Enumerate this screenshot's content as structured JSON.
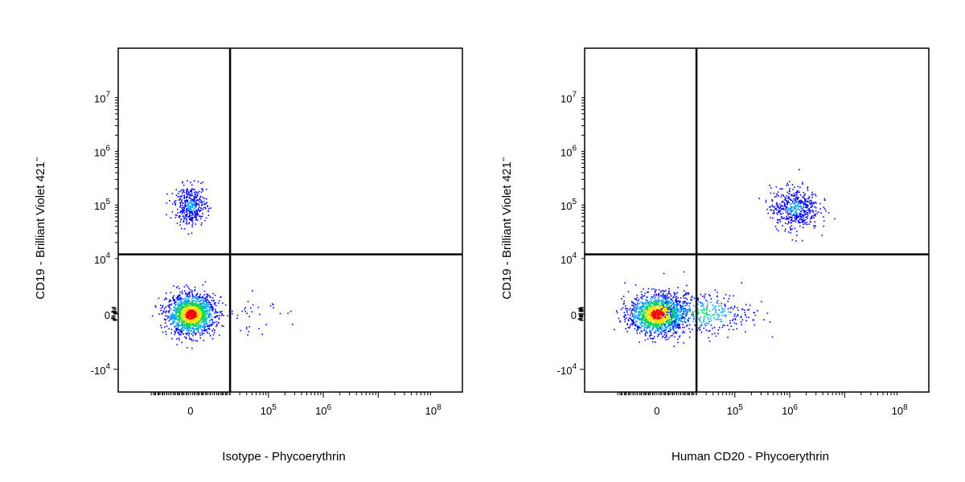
{
  "chart_data": [
    {
      "type": "scatter",
      "subtype": "flow-cytometry-density-dot-plot",
      "xlabel": "Isotype - Phycoerythrin",
      "ylabel": "CD19 - Brilliant Violet 421",
      "ylabel_trademark": "™",
      "x_scale": "biexponential",
      "y_scale": "biexponential",
      "x_ticks": [
        {
          "base": "0",
          "exp": ""
        },
        {
          "base": "10",
          "exp": "5"
        },
        {
          "base": "10",
          "exp": "6"
        },
        {
          "base": "10",
          "exp": "8"
        }
      ],
      "y_ticks": [
        {
          "base": "-10",
          "exp": "4"
        },
        {
          "base": "0",
          "exp": ""
        },
        {
          "base": "10",
          "exp": "4"
        },
        {
          "base": "10",
          "exp": "5"
        },
        {
          "base": "10",
          "exp": "6"
        },
        {
          "base": "10",
          "exp": "7"
        }
      ],
      "gate_x": 20000,
      "gate_y": 12000,
      "populations": [
        {
          "name": "",
          "x_center": 0,
          "y_center": 0,
          "x_spread": 6000,
          "y_spread": 1800,
          "count": 1500,
          "density": "high"
        },
        {
          "name": "",
          "x_center": 0,
          "y_center": 100000,
          "x_spread": 4000,
          "y_spread": 0.18,
          "count": 420,
          "density": "low"
        },
        {
          "name": "",
          "x_center": 30000,
          "y_center": 800,
          "x_spread": 0.35,
          "y_spread": 2200,
          "count": 45,
          "density": "sparse"
        }
      ]
    },
    {
      "type": "scatter",
      "subtype": "flow-cytometry-density-dot-plot",
      "xlabel": "Human CD20 - Phycoerythrin",
      "ylabel": "CD19 - Brilliant Violet 421",
      "ylabel_trademark": "™",
      "x_scale": "biexponential",
      "y_scale": "biexponential",
      "x_ticks": [
        {
          "base": "0",
          "exp": ""
        },
        {
          "base": "10",
          "exp": "5"
        },
        {
          "base": "10",
          "exp": "6"
        },
        {
          "base": "10",
          "exp": "8"
        }
      ],
      "y_ticks": [
        {
          "base": "-10",
          "exp": "4"
        },
        {
          "base": "0",
          "exp": ""
        },
        {
          "base": "10",
          "exp": "4"
        },
        {
          "base": "10",
          "exp": "5"
        },
        {
          "base": "10",
          "exp": "6"
        },
        {
          "base": "10",
          "exp": "7"
        }
      ],
      "gate_x": 20000,
      "gate_y": 12000,
      "populations": [
        {
          "name": "",
          "x_center": 0,
          "y_center": 0,
          "x_spread": 7000,
          "y_spread": 1800,
          "count": 1500,
          "density": "high"
        },
        {
          "name": "",
          "x_center": 25000,
          "y_center": 300,
          "x_spread": 0.45,
          "y_spread": 2000,
          "count": 380,
          "density": "medium"
        },
        {
          "name": "",
          "x_center": 1200000,
          "y_center": 90000,
          "x_spread": 0.22,
          "y_spread": 0.2,
          "count": 520,
          "density": "low"
        }
      ]
    }
  ],
  "colors": {
    "sparse": "#0000ff",
    "low": "#00a0ff",
    "medium": "#00d060",
    "high": "#f0e000",
    "peak": "#ff0000",
    "axis": "#000000",
    "gate": "#000000"
  }
}
